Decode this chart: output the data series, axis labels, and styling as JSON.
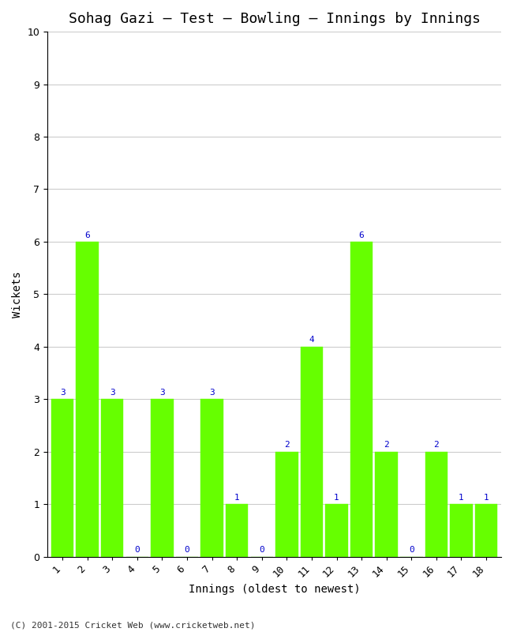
{
  "title": "Sohag Gazi – Test – Bowling – Innings by Innings",
  "xlabel": "Innings (oldest to newest)",
  "ylabel": "Wickets",
  "categories": [
    "1",
    "2",
    "3",
    "4",
    "5",
    "6",
    "7",
    "8",
    "9",
    "10",
    "11",
    "12",
    "13",
    "14",
    "15",
    "16",
    "17",
    "18"
  ],
  "values": [
    3,
    6,
    3,
    0,
    3,
    0,
    3,
    1,
    0,
    2,
    4,
    1,
    6,
    2,
    0,
    2,
    1,
    1
  ],
  "bar_color": "#66ff00",
  "bar_edge_color": "#66ff00",
  "label_color": "#0000cc",
  "title_fontsize": 13,
  "axis_label_fontsize": 10,
  "tick_fontsize": 9,
  "label_fontsize": 8,
  "ylim": [
    0,
    10
  ],
  "yticks": [
    0,
    1,
    2,
    3,
    4,
    5,
    6,
    7,
    8,
    9,
    10
  ],
  "background_color": "#ffffff",
  "grid_color": "#cccccc",
  "footer": "(C) 2001-2015 Cricket Web (www.cricketweb.net)"
}
